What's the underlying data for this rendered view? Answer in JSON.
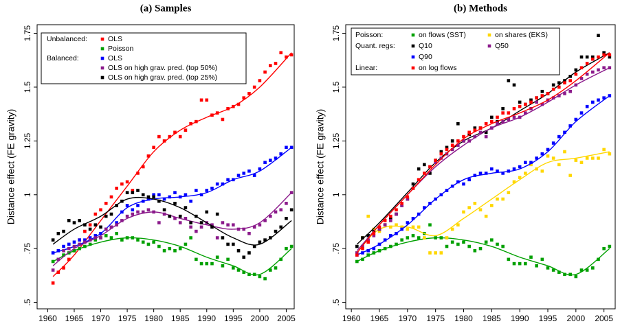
{
  "chart_data": [
    {
      "type": "scatter",
      "title": "(a) Samples",
      "ylabel": "Distance effect (FE gravity)",
      "x": [
        1961,
        1962,
        1963,
        1964,
        1965,
        1966,
        1967,
        1968,
        1969,
        1970,
        1971,
        1972,
        1973,
        1974,
        1975,
        1976,
        1977,
        1978,
        1979,
        1980,
        1981,
        1982,
        1983,
        1984,
        1985,
        1986,
        1987,
        1988,
        1989,
        1990,
        1991,
        1992,
        1993,
        1994,
        1995,
        1996,
        1997,
        1998,
        1999,
        2000,
        2001,
        2002,
        2003,
        2004,
        2005,
        2006
      ],
      "fit_x": [
        1961,
        1965,
        1970,
        1975,
        1980,
        1985,
        1990,
        1995,
        2000,
        2006
      ],
      "xlim": [
        1958,
        2006.5
      ],
      "ylim": [
        0.47,
        1.79
      ],
      "xticks": [
        1960,
        1965,
        1970,
        1975,
        1980,
        1985,
        1990,
        1995,
        2000,
        2005
      ],
      "yticks": [
        {
          "value": 0.5,
          "label": ".5"
        },
        {
          "value": 0.75,
          "label": ".75"
        },
        1,
        1.25,
        1.5,
        1.75
      ],
      "series": [
        {
          "name": "OLS",
          "group": "Unbalanced:",
          "color": "#ff0000",
          "values": [
            0.59,
            0.64,
            0.66,
            0.7,
            0.74,
            0.79,
            0.83,
            0.86,
            0.91,
            0.93,
            0.96,
            0.99,
            1.03,
            1.05,
            1.06,
            1.02,
            1.1,
            1.13,
            1.18,
            1.22,
            1.27,
            1.25,
            1.27,
            1.29,
            1.27,
            1.3,
            1.33,
            1.34,
            1.44,
            1.44,
            1.37,
            1.38,
            1.35,
            1.4,
            1.41,
            1.42,
            1.45,
            1.47,
            1.5,
            1.53,
            1.57,
            1.6,
            1.61,
            1.66,
            1.64,
            1.65
          ],
          "fit": [
            0.62,
            0.72,
            0.88,
            1.04,
            1.2,
            1.3,
            1.36,
            1.41,
            1.5,
            1.66
          ]
        },
        {
          "name": "Poisson",
          "color": "#00a000",
          "values": [
            0.69,
            0.7,
            0.72,
            0.73,
            0.74,
            0.75,
            0.76,
            0.77,
            0.79,
            0.8,
            0.81,
            0.8,
            0.82,
            0.79,
            0.8,
            0.8,
            0.79,
            0.78,
            0.77,
            0.78,
            0.76,
            0.74,
            0.75,
            0.74,
            0.75,
            0.77,
            0.8,
            0.7,
            0.68,
            0.68,
            0.68,
            0.71,
            0.67,
            0.7,
            0.66,
            0.65,
            0.64,
            0.63,
            0.63,
            0.62,
            0.61,
            0.65,
            0.66,
            0.7,
            0.75,
            0.76
          ],
          "fit": [
            0.69,
            0.74,
            0.78,
            0.8,
            0.79,
            0.76,
            0.71,
            0.67,
            0.63,
            0.75
          ]
        },
        {
          "name": "OLS",
          "group": "Balanced:",
          "color": "#0000ff",
          "values": [
            0.73,
            0.74,
            0.76,
            0.77,
            0.78,
            0.79,
            0.79,
            0.8,
            0.81,
            0.82,
            0.84,
            0.85,
            0.87,
            0.92,
            0.95,
            0.93,
            0.95,
            0.97,
            0.98,
            1.0,
            1.0,
            0.98,
            0.99,
            1.01,
            0.99,
            1.0,
            0.97,
            1.02,
            1.0,
            1.02,
            1.03,
            1.05,
            1.05,
            1.07,
            1.07,
            1.09,
            1.1,
            1.11,
            1.09,
            1.12,
            1.15,
            1.16,
            1.17,
            1.19,
            1.22,
            1.22
          ],
          "fit": [
            0.73,
            0.76,
            0.82,
            0.94,
            0.98,
            0.99,
            1.01,
            1.07,
            1.11,
            1.22
          ]
        },
        {
          "name": "OLS on high grav. pred. (top 50%)",
          "color": "#8b1a8b",
          "values": [
            0.65,
            0.7,
            0.74,
            0.75,
            0.76,
            0.77,
            0.78,
            0.79,
            0.8,
            0.8,
            0.84,
            0.85,
            0.86,
            0.88,
            0.9,
            0.91,
            0.92,
            0.92,
            0.93,
            0.92,
            0.87,
            0.91,
            0.9,
            0.89,
            0.87,
            0.89,
            0.85,
            0.83,
            0.85,
            0.87,
            0.86,
            0.8,
            0.87,
            0.86,
            0.86,
            0.84,
            0.84,
            0.82,
            0.85,
            0.86,
            0.88,
            0.9,
            0.92,
            0.93,
            0.96,
            1.01
          ],
          "fit": [
            0.67,
            0.75,
            0.81,
            0.89,
            0.92,
            0.89,
            0.86,
            0.84,
            0.87,
            1.01
          ]
        },
        {
          "name": "OLS on high grav. pred. (top 25%)",
          "color": "#000000",
          "values": [
            0.79,
            0.82,
            0.83,
            0.88,
            0.87,
            0.88,
            0.86,
            0.84,
            0.86,
            0.85,
            0.9,
            0.91,
            0.95,
            0.97,
            1.01,
            1.01,
            1.02,
            1.0,
            0.99,
            0.99,
            0.97,
            0.93,
            0.9,
            0.96,
            0.9,
            0.94,
            0.87,
            0.9,
            0.87,
            0.92,
            0.85,
            0.91,
            0.8,
            0.77,
            0.77,
            0.74,
            0.71,
            0.73,
            0.76,
            0.78,
            0.79,
            0.8,
            0.83,
            0.85,
            0.89,
            0.93
          ],
          "fit": [
            0.77,
            0.84,
            0.9,
            0.98,
            0.98,
            0.94,
            0.87,
            0.8,
            0.77,
            0.88
          ]
        }
      ]
    },
    {
      "type": "scatter",
      "title": "(b) Methods",
      "ylabel": "Distance effect (FE gravity)",
      "x": [
        1961,
        1962,
        1963,
        1964,
        1965,
        1966,
        1967,
        1968,
        1969,
        1970,
        1971,
        1972,
        1973,
        1974,
        1975,
        1976,
        1977,
        1978,
        1979,
        1980,
        1981,
        1982,
        1983,
        1984,
        1985,
        1986,
        1987,
        1988,
        1989,
        1990,
        1991,
        1992,
        1993,
        1994,
        1995,
        1996,
        1997,
        1998,
        1999,
        2000,
        2001,
        2002,
        2003,
        2004,
        2005,
        2006
      ],
      "fit_x": [
        1961,
        1965,
        1970,
        1975,
        1980,
        1985,
        1990,
        1995,
        2000,
        2006
      ],
      "xlim": [
        1959,
        2007
      ],
      "ylim": [
        0.47,
        1.79
      ],
      "xticks": [
        1960,
        1965,
        1970,
        1975,
        1980,
        1985,
        1990,
        1995,
        2000,
        2005
      ],
      "yticks": [
        {
          "value": 0.5,
          "label": ".5"
        },
        {
          "value": 0.75,
          "label": ".75"
        },
        1,
        1.25,
        1.5,
        1.75
      ],
      "series": [
        {
          "name": "on flows (SST)",
          "group": "Poisson:",
          "color": "#00a000",
          "values": [
            0.69,
            0.7,
            0.72,
            0.73,
            0.74,
            0.75,
            0.76,
            0.77,
            0.79,
            0.8,
            0.81,
            0.8,
            0.82,
            0.86,
            0.8,
            0.8,
            0.76,
            0.78,
            0.77,
            0.78,
            0.76,
            0.74,
            0.75,
            0.78,
            0.79,
            0.77,
            0.76,
            0.7,
            0.68,
            0.68,
            0.68,
            0.71,
            0.67,
            0.7,
            0.66,
            0.65,
            0.64,
            0.63,
            0.63,
            0.62,
            0.65,
            0.65,
            0.66,
            0.7,
            0.75,
            0.76
          ],
          "fit": [
            0.69,
            0.74,
            0.78,
            0.8,
            0.79,
            0.76,
            0.71,
            0.67,
            0.63,
            0.75
          ]
        },
        {
          "name": "on shares (EKS)",
          "color": "#ffd700",
          "values": [
            0.73,
            0.8,
            0.9,
            0.84,
            0.83,
            0.86,
            0.85,
            0.86,
            0.85,
            0.84,
            0.85,
            0.85,
            0.8,
            0.73,
            0.73,
            0.73,
            0.8,
            0.84,
            0.86,
            0.92,
            0.94,
            0.96,
            0.93,
            0.9,
            0.95,
            0.98,
            0.98,
            1.01,
            1.06,
            1.08,
            1.1,
            1.14,
            1.12,
            1.11,
            1.18,
            1.17,
            1.14,
            1.2,
            1.09,
            1.16,
            1.15,
            1.17,
            1.17,
            1.17,
            1.21,
            1.19
          ],
          "fit": [
            0.73,
            0.84,
            0.85,
            0.81,
            0.89,
            0.98,
            1.07,
            1.15,
            1.17,
            1.2
          ]
        },
        {
          "name": "Q10",
          "group": "Quant. regs:",
          "color": "#000000",
          "values": [
            0.76,
            0.8,
            0.81,
            0.83,
            0.84,
            0.86,
            0.89,
            0.91,
            0.95,
            0.98,
            1.05,
            1.12,
            1.14,
            1.1,
            1.16,
            1.2,
            1.22,
            1.25,
            1.33,
            1.25,
            1.28,
            1.31,
            1.31,
            1.29,
            1.36,
            1.34,
            1.4,
            1.53,
            1.51,
            1.43,
            1.42,
            1.44,
            1.45,
            1.48,
            1.47,
            1.51,
            1.52,
            1.53,
            1.55,
            1.58,
            1.64,
            1.64,
            1.64,
            1.74,
            1.66,
            1.64
          ],
          "fit": [
            0.77,
            0.87,
            1.01,
            1.15,
            1.25,
            1.31,
            1.39,
            1.47,
            1.57,
            1.66
          ]
        },
        {
          "name": "Q50",
          "color": "#8b1a8b",
          "values": [
            0.73,
            0.76,
            0.79,
            0.81,
            0.84,
            0.86,
            0.88,
            0.91,
            0.95,
            0.98,
            1.03,
            1.07,
            1.1,
            1.13,
            1.15,
            1.17,
            1.19,
            1.21,
            1.23,
            1.25,
            1.25,
            1.27,
            1.29,
            1.27,
            1.31,
            1.33,
            1.34,
            1.35,
            1.36,
            1.36,
            1.38,
            1.4,
            1.43,
            1.42,
            1.44,
            1.45,
            1.46,
            1.47,
            1.48,
            1.51,
            1.54,
            1.56,
            1.57,
            1.58,
            1.59,
            1.59
          ],
          "fit": [
            0.74,
            0.86,
            1.0,
            1.13,
            1.23,
            1.31,
            1.36,
            1.43,
            1.51,
            1.59
          ]
        },
        {
          "name": "Q90",
          "color": "#0000ff",
          "values": [
            0.72,
            0.73,
            0.74,
            0.75,
            0.77,
            0.79,
            0.81,
            0.82,
            0.84,
            0.87,
            0.89,
            0.91,
            0.94,
            0.96,
            0.98,
            1.0,
            1.02,
            1.04,
            1.06,
            1.05,
            1.07,
            1.09,
            1.1,
            1.1,
            1.12,
            1.11,
            1.1,
            1.11,
            1.12,
            1.13,
            1.15,
            1.15,
            1.17,
            1.19,
            1.21,
            1.24,
            1.27,
            1.29,
            1.32,
            1.35,
            1.38,
            1.41,
            1.43,
            1.44,
            1.45,
            1.46
          ],
          "fit": [
            0.72,
            0.77,
            0.86,
            0.98,
            1.07,
            1.1,
            1.12,
            1.2,
            1.34,
            1.46
          ]
        },
        {
          "name": "on log flows",
          "group": "Linear:",
          "color": "#ff0000",
          "values": [
            0.72,
            0.75,
            0.78,
            0.82,
            0.85,
            0.88,
            0.9,
            0.93,
            0.96,
            0.99,
            1.03,
            1.07,
            1.1,
            1.13,
            1.16,
            1.19,
            1.21,
            1.23,
            1.25,
            1.27,
            1.29,
            1.3,
            1.31,
            1.33,
            1.34,
            1.36,
            1.38,
            1.38,
            1.4,
            1.41,
            1.42,
            1.43,
            1.45,
            1.46,
            1.47,
            1.49,
            1.5,
            1.52,
            1.53,
            1.56,
            1.59,
            1.61,
            1.63,
            1.64,
            1.65,
            1.65
          ],
          "fit": [
            0.73,
            0.86,
            1.0,
            1.14,
            1.26,
            1.33,
            1.38,
            1.44,
            1.53,
            1.66
          ]
        }
      ]
    }
  ]
}
